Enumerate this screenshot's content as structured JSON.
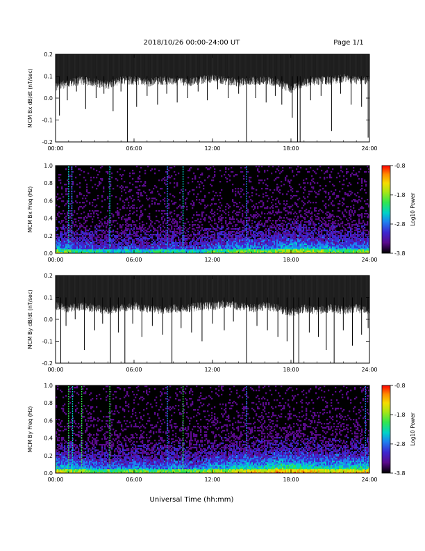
{
  "header": {
    "title": "2018/10/26  00:00-24:00 UT",
    "page": "Page 1/1"
  },
  "xaxis_label": "Universal Time (hh:mm)",
  "colors": {
    "trace": "#000000",
    "spectrogram_background": "#000000",
    "colormap": [
      "#000000",
      "#5a0a8c",
      "#3c28d2",
      "#1e82f0",
      "#00d2c8",
      "#32e650",
      "#aae614",
      "#f5dc00",
      "#ff8c00",
      "#ff0000"
    ]
  },
  "chart_data": [
    {
      "type": "line",
      "panel": "bx-timeseries",
      "ylabel": "MCM Bx dB/dt (nT/sec)",
      "xlim": [
        0,
        24
      ],
      "ylim": [
        -0.2,
        0.2
      ],
      "xticks": [
        "00:00",
        "06:00",
        "12:00",
        "18:00",
        "24:00"
      ],
      "yticks": [
        "-0.2",
        "-0.1",
        "0.0",
        "0.1",
        "0.2"
      ],
      "ytick_values": [
        -0.2,
        -0.1,
        0.0,
        0.1,
        0.2
      ],
      "envelope": {
        "hours": [
          0,
          1,
          2,
          3,
          4,
          5,
          6,
          7,
          8,
          9,
          10,
          11,
          12,
          13,
          14,
          15,
          16,
          17,
          18,
          19,
          20,
          21,
          22,
          23,
          24
        ],
        "lower": [
          0.07,
          0.09,
          0.1,
          0.09,
          0.08,
          0.1,
          0.1,
          0.09,
          0.1,
          0.1,
          0.09,
          0.1,
          0.11,
          0.1,
          0.09,
          0.1,
          0.1,
          0.09,
          0.06,
          0.09,
          0.1,
          0.1,
          0.11,
          0.1,
          0.1
        ]
      },
      "spikes": [
        {
          "t": 0.3,
          "min": -0.08
        },
        {
          "t": 0.9,
          "min": -0.01
        },
        {
          "t": 1.6,
          "min": 0.03
        },
        {
          "t": 2.3,
          "min": -0.05
        },
        {
          "t": 3.1,
          "min": 0.0
        },
        {
          "t": 3.7,
          "min": 0.02
        },
        {
          "t": 4.4,
          "min": -0.06
        },
        {
          "t": 5.0,
          "min": 0.03
        },
        {
          "t": 5.5,
          "min": -0.2
        },
        {
          "t": 6.2,
          "min": -0.04
        },
        {
          "t": 7.0,
          "min": 0.01
        },
        {
          "t": 7.8,
          "min": -0.03
        },
        {
          "t": 8.5,
          "min": 0.02
        },
        {
          "t": 9.3,
          "min": -0.02
        },
        {
          "t": 10.1,
          "min": 0.0
        },
        {
          "t": 10.9,
          "min": 0.03
        },
        {
          "t": 11.6,
          "min": -0.01
        },
        {
          "t": 12.4,
          "min": 0.04
        },
        {
          "t": 13.2,
          "min": 0.0
        },
        {
          "t": 14.0,
          "min": 0.02
        },
        {
          "t": 14.6,
          "min": -0.2
        },
        {
          "t": 15.3,
          "min": 0.0
        },
        {
          "t": 16.1,
          "min": -0.02
        },
        {
          "t": 16.8,
          "min": 0.01
        },
        {
          "t": 17.3,
          "min": -0.03
        },
        {
          "t": 18.1,
          "min": -0.09
        },
        {
          "t": 18.5,
          "min": -0.2
        },
        {
          "t": 18.7,
          "min": -0.2
        },
        {
          "t": 19.5,
          "min": -0.01
        },
        {
          "t": 20.3,
          "min": 0.01
        },
        {
          "t": 21.1,
          "min": -0.15
        },
        {
          "t": 21.8,
          "min": 0.02
        },
        {
          "t": 22.6,
          "min": -0.03
        },
        {
          "t": 23.4,
          "min": -0.04
        },
        {
          "t": 23.9,
          "min": -0.18
        }
      ]
    },
    {
      "type": "heatmap",
      "panel": "bx-spectrogram",
      "ylabel": "MCM Bx Freq (Hz)",
      "xlim": [
        0,
        24
      ],
      "ylim": [
        0.0,
        1.0
      ],
      "xticks": [
        "00:00",
        "06:00",
        "12:00",
        "18:00",
        "24:00"
      ],
      "yticks": [
        "0.0",
        "0.2",
        "0.4",
        "0.6",
        "0.8",
        "1.0"
      ],
      "ytick_values": [
        0.0,
        0.2,
        0.4,
        0.6,
        0.8,
        1.0
      ],
      "colorbar": {
        "label": "Log10 Power",
        "ticks": [
          "-0.8",
          "-1.8",
          "-2.8",
          "-3.8"
        ],
        "range": [
          -3.8,
          -0.8
        ]
      },
      "activity_by_hour": [
        0.35,
        0.3,
        0.25,
        0.25,
        0.2,
        0.2,
        0.25,
        0.2,
        0.25,
        0.25,
        0.2,
        0.2,
        0.3,
        0.3,
        0.35,
        0.35,
        0.3,
        0.35,
        0.4,
        0.4,
        0.35,
        0.35,
        0.3,
        0.3,
        0.35
      ],
      "vertical_lines": [
        {
          "t": 1.0,
          "level": 0.7
        },
        {
          "t": 1.25,
          "level": 0.6
        },
        {
          "t": 4.15,
          "level": 0.75
        },
        {
          "t": 8.55,
          "level": 0.55
        },
        {
          "t": 9.75,
          "level": 0.7
        },
        {
          "t": 14.6,
          "level": 0.45
        }
      ]
    },
    {
      "type": "line",
      "panel": "by-timeseries",
      "ylabel": "MCM By dB/dt (nT/sec)",
      "xlim": [
        0,
        24
      ],
      "ylim": [
        -0.2,
        0.2
      ],
      "xticks": [
        "00:00",
        "06:00",
        "12:00",
        "18:00",
        "24:00"
      ],
      "yticks": [
        "-0.2",
        "-0.1",
        "0.0",
        "0.1",
        "0.2"
      ],
      "ytick_values": [
        -0.2,
        -0.1,
        0.0,
        0.1,
        0.2
      ],
      "envelope": {
        "hours": [
          0,
          1,
          2,
          3,
          4,
          5,
          6,
          7,
          8,
          9,
          10,
          11,
          12,
          13,
          14,
          15,
          16,
          17,
          18,
          19,
          20,
          21,
          22,
          23,
          24
        ],
        "lower": [
          0.08,
          0.07,
          0.08,
          0.07,
          0.06,
          0.07,
          0.08,
          0.07,
          0.06,
          0.07,
          0.07,
          0.08,
          0.08,
          0.09,
          0.08,
          0.07,
          0.08,
          0.07,
          0.05,
          0.07,
          0.06,
          0.07,
          0.06,
          0.07,
          0.06
        ]
      },
      "spikes": [
        {
          "t": 0.4,
          "min": -0.2
        },
        {
          "t": 0.8,
          "min": -0.03
        },
        {
          "t": 1.5,
          "min": 0.0
        },
        {
          "t": 2.2,
          "min": -0.14
        },
        {
          "t": 3.0,
          "min": -0.05
        },
        {
          "t": 3.6,
          "min": -0.02
        },
        {
          "t": 4.2,
          "min": -0.2
        },
        {
          "t": 4.8,
          "min": -0.06
        },
        {
          "t": 5.3,
          "min": -0.2
        },
        {
          "t": 5.9,
          "min": -0.02
        },
        {
          "t": 6.6,
          "min": -0.08
        },
        {
          "t": 7.4,
          "min": -0.03
        },
        {
          "t": 8.2,
          "min": -0.07
        },
        {
          "t": 8.9,
          "min": -0.2
        },
        {
          "t": 9.6,
          "min": -0.04
        },
        {
          "t": 10.4,
          "min": -0.06
        },
        {
          "t": 11.2,
          "min": -0.1
        },
        {
          "t": 12.0,
          "min": -0.02
        },
        {
          "t": 12.9,
          "min": -0.05
        },
        {
          "t": 13.6,
          "min": -0.01
        },
        {
          "t": 14.6,
          "min": -0.2
        },
        {
          "t": 15.4,
          "min": -0.03
        },
        {
          "t": 16.2,
          "min": -0.05
        },
        {
          "t": 17.0,
          "min": -0.08
        },
        {
          "t": 17.7,
          "min": -0.1
        },
        {
          "t": 18.2,
          "min": -0.2
        },
        {
          "t": 18.6,
          "min": -0.2
        },
        {
          "t": 19.4,
          "min": -0.06
        },
        {
          "t": 20.1,
          "min": -0.08
        },
        {
          "t": 20.7,
          "min": -0.14
        },
        {
          "t": 21.3,
          "min": -0.2
        },
        {
          "t": 22.0,
          "min": -0.05
        },
        {
          "t": 22.7,
          "min": -0.12
        },
        {
          "t": 23.4,
          "min": -0.07
        },
        {
          "t": 23.9,
          "min": -0.04
        }
      ]
    },
    {
      "type": "heatmap",
      "panel": "by-spectrogram",
      "ylabel": "MCM By Freq (Hz)",
      "xlim": [
        0,
        24
      ],
      "ylim": [
        0.0,
        1.0
      ],
      "xticks": [
        "00:00",
        "06:00",
        "12:00",
        "18:00",
        "24:00"
      ],
      "yticks": [
        "0.0",
        "0.2",
        "0.4",
        "0.6",
        "0.8",
        "1.0"
      ],
      "ytick_values": [
        0.0,
        0.2,
        0.4,
        0.6,
        0.8,
        1.0
      ],
      "colorbar": {
        "label": "Log10 Power",
        "ticks": [
          "-0.8",
          "-1.8",
          "-2.8",
          "-3.8"
        ],
        "range": [
          -3.8,
          -0.8
        ]
      },
      "activity_by_hour": [
        0.45,
        0.4,
        0.35,
        0.3,
        0.3,
        0.3,
        0.35,
        0.3,
        0.3,
        0.35,
        0.3,
        0.3,
        0.4,
        0.4,
        0.45,
        0.45,
        0.45,
        0.5,
        0.5,
        0.5,
        0.45,
        0.45,
        0.45,
        0.45,
        0.5
      ],
      "vertical_lines": [
        {
          "t": 1.0,
          "level": 0.85
        },
        {
          "t": 1.3,
          "level": 0.7
        },
        {
          "t": 2.0,
          "level": 0.8
        },
        {
          "t": 4.15,
          "level": 0.8
        },
        {
          "t": 8.55,
          "level": 0.6
        },
        {
          "t": 9.75,
          "level": 0.85
        },
        {
          "t": 14.6,
          "level": 0.6
        },
        {
          "t": 23.7,
          "level": 0.5
        }
      ]
    }
  ]
}
